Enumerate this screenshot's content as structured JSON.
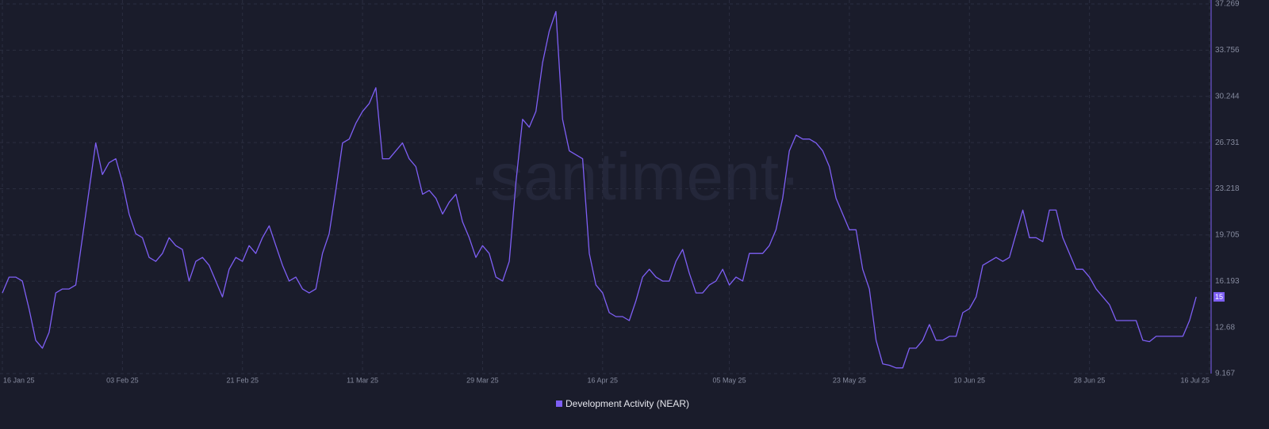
{
  "chart_data": {
    "type": "line",
    "watermark": "·santiment·",
    "x": [
      "2025-01-16",
      "2025-01-17",
      "2025-01-18",
      "2025-01-19",
      "2025-01-20",
      "2025-01-21",
      "2025-01-22",
      "2025-01-23",
      "2025-01-24",
      "2025-01-25",
      "2025-01-26",
      "2025-01-27",
      "2025-01-28",
      "2025-01-29",
      "2025-01-30",
      "2025-01-31",
      "2025-02-01",
      "2025-02-02",
      "2025-02-03",
      "2025-02-04",
      "2025-02-05",
      "2025-02-06",
      "2025-02-07",
      "2025-02-08",
      "2025-02-09",
      "2025-02-10",
      "2025-02-11",
      "2025-02-12",
      "2025-02-13",
      "2025-02-14",
      "2025-02-15",
      "2025-02-16",
      "2025-02-17",
      "2025-02-18",
      "2025-02-19",
      "2025-02-20",
      "2025-02-21",
      "2025-02-22",
      "2025-02-23",
      "2025-02-24",
      "2025-02-25",
      "2025-02-26",
      "2025-02-27",
      "2025-02-28",
      "2025-03-01",
      "2025-03-02",
      "2025-03-03",
      "2025-03-04",
      "2025-03-05",
      "2025-03-06",
      "2025-03-07",
      "2025-03-08",
      "2025-03-09",
      "2025-03-10",
      "2025-03-11",
      "2025-03-12",
      "2025-03-13",
      "2025-03-14",
      "2025-03-15",
      "2025-03-16",
      "2025-03-17",
      "2025-03-18",
      "2025-03-19",
      "2025-03-20",
      "2025-03-21",
      "2025-03-22",
      "2025-03-23",
      "2025-03-24",
      "2025-03-25",
      "2025-03-26",
      "2025-03-27",
      "2025-03-28",
      "2025-03-29",
      "2025-03-30",
      "2025-03-31",
      "2025-04-01",
      "2025-04-02",
      "2025-04-03",
      "2025-04-04",
      "2025-04-05",
      "2025-04-06",
      "2025-04-07",
      "2025-04-08",
      "2025-04-09",
      "2025-04-10",
      "2025-04-11",
      "2025-04-12",
      "2025-04-13",
      "2025-04-14",
      "2025-04-15",
      "2025-04-16",
      "2025-04-17",
      "2025-04-18",
      "2025-04-19",
      "2025-04-20",
      "2025-04-21",
      "2025-04-22",
      "2025-04-23",
      "2025-04-24",
      "2025-04-25",
      "2025-04-26",
      "2025-04-27",
      "2025-04-28",
      "2025-04-29",
      "2025-04-30",
      "2025-05-01",
      "2025-05-02",
      "2025-05-03",
      "2025-05-04",
      "2025-05-05",
      "2025-05-06",
      "2025-05-07",
      "2025-05-08",
      "2025-05-09",
      "2025-05-10",
      "2025-05-11",
      "2025-05-12",
      "2025-05-13",
      "2025-05-14",
      "2025-05-15",
      "2025-05-16",
      "2025-05-17",
      "2025-05-18",
      "2025-05-19",
      "2025-05-20",
      "2025-05-21",
      "2025-05-22",
      "2025-05-23",
      "2025-05-24",
      "2025-05-25",
      "2025-05-26",
      "2025-05-27",
      "2025-05-28",
      "2025-05-29",
      "2025-05-30",
      "2025-05-31",
      "2025-06-01",
      "2025-06-02",
      "2025-06-03",
      "2025-06-04",
      "2025-06-05",
      "2025-06-06",
      "2025-06-07",
      "2025-06-08",
      "2025-06-09",
      "2025-06-10",
      "2025-06-11",
      "2025-06-12",
      "2025-06-13",
      "2025-06-14",
      "2025-06-15",
      "2025-06-16",
      "2025-06-17",
      "2025-06-18",
      "2025-06-19",
      "2025-06-20",
      "2025-06-21",
      "2025-06-22",
      "2025-06-23",
      "2025-06-24",
      "2025-06-25",
      "2025-06-26",
      "2025-06-27",
      "2025-06-28",
      "2025-06-29",
      "2025-06-30",
      "2025-07-01",
      "2025-07-02",
      "2025-07-03",
      "2025-07-04",
      "2025-07-05",
      "2025-07-06",
      "2025-07-07",
      "2025-07-08",
      "2025-07-09",
      "2025-07-10",
      "2025-07-11",
      "2025-07-12",
      "2025-07-13",
      "2025-07-14"
    ],
    "series": [
      {
        "name": "Development Activity (NEAR)",
        "color": "#7e5ff5",
        "values": [
          15.3,
          16.5,
          16.5,
          16.2,
          14.1,
          11.7,
          11.1,
          12.3,
          15.3,
          15.6,
          15.6,
          15.9,
          19.5,
          23.1,
          26.7,
          24.3,
          25.2,
          25.5,
          23.7,
          21.3,
          19.8,
          19.5,
          18.0,
          17.7,
          18.3,
          19.5,
          18.9,
          18.6,
          16.2,
          17.7,
          18.0,
          17.4,
          16.2,
          15.0,
          17.1,
          18.0,
          17.7,
          18.9,
          18.3,
          19.5,
          20.4,
          18.9,
          17.4,
          16.2,
          16.5,
          15.6,
          15.3,
          15.6,
          18.3,
          19.8,
          23.1,
          26.7,
          27.0,
          28.2,
          29.1,
          29.7,
          30.9,
          25.5,
          25.5,
          26.1,
          26.7,
          25.5,
          24.9,
          22.8,
          23.1,
          22.5,
          21.3,
          22.2,
          22.8,
          20.7,
          19.5,
          18.0,
          18.9,
          18.3,
          16.5,
          16.2,
          17.7,
          23.7,
          28.5,
          27.9,
          29.1,
          32.8,
          35.2,
          36.7,
          28.5,
          26.1,
          25.8,
          25.5,
          18.3,
          15.9,
          15.3,
          13.8,
          13.5,
          13.5,
          13.2,
          14.7,
          16.5,
          17.1,
          16.5,
          16.2,
          16.2,
          17.7,
          18.6,
          16.8,
          15.3,
          15.3,
          15.9,
          16.2,
          17.1,
          15.9,
          16.5,
          16.2,
          18.3,
          18.3,
          18.3,
          18.9,
          20.1,
          22.5,
          26.1,
          27.3,
          27.0,
          27.0,
          26.7,
          26.1,
          24.9,
          22.5,
          21.3,
          20.1,
          20.1,
          17.1,
          15.6,
          11.7,
          9.9,
          9.8,
          9.6,
          9.6,
          11.1,
          11.1,
          11.7,
          12.9,
          11.7,
          11.7,
          12.0,
          12.0,
          13.8,
          14.1,
          15.0,
          17.4,
          17.7,
          18.0,
          17.7,
          18.0,
          19.8,
          21.6,
          19.5,
          19.5,
          19.2,
          21.6,
          21.6,
          19.5,
          18.3,
          17.1,
          17.1,
          16.5,
          15.6,
          15.0,
          14.4,
          13.2,
          13.2,
          13.2,
          13.2,
          11.7,
          11.6,
          12.0,
          12.0,
          12.0,
          12.0,
          12.0,
          13.2,
          15
        ]
      }
    ],
    "xlim": [
      "2025-01-16",
      "2025-07-16"
    ],
    "xticks": [
      {
        "value": "2025-01-16",
        "label": "16 Jan 25"
      },
      {
        "value": "2025-02-03",
        "label": "03 Feb 25"
      },
      {
        "value": "2025-02-21",
        "label": "21 Feb 25"
      },
      {
        "value": "2025-03-11",
        "label": "11 Mar 25"
      },
      {
        "value": "2025-03-29",
        "label": "29 Mar 25"
      },
      {
        "value": "2025-04-16",
        "label": "16 Apr 25"
      },
      {
        "value": "2025-05-05",
        "label": "05 May 25"
      },
      {
        "value": "2025-05-23",
        "label": "23 May 25"
      },
      {
        "value": "2025-06-10",
        "label": "10 Jun 25"
      },
      {
        "value": "2025-06-28",
        "label": "28 Jun 25"
      },
      {
        "value": "2025-07-16",
        "label": "16 Jul 25"
      }
    ],
    "ylim": [
      9.167,
      37.269
    ],
    "yticks": [
      9.167,
      12.68,
      16.193,
      19.705,
      23.218,
      26.731,
      30.244,
      33.756,
      37.269
    ],
    "grid": true
  }
}
